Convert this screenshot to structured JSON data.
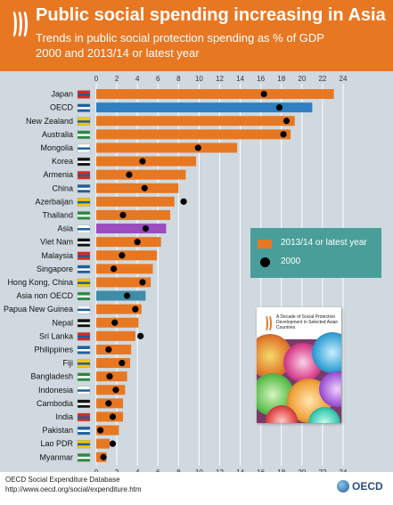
{
  "header": {
    "title": "Public social spending increasing in Asia",
    "subtitle_line1": "Trends in public social protection spending as % of GDP",
    "subtitle_line2": "2000 and 2013/14 or latest year"
  },
  "colors": {
    "orange": "#e87722",
    "blue": "#2f7fc1",
    "purple": "#9b4dbf",
    "teal": "#3f8ea8",
    "legend_bg": "#4a9e9a",
    "plot_bg": "#cfd9df",
    "grid": "#ffffff"
  },
  "legend": {
    "latest_label": "2013/14 or latest year",
    "y2000_label": "2000"
  },
  "footer": {
    "source_line1": "OECD Social Expenditure Database",
    "source_line2": "http://www.oecd.org/social/expenditure.htm",
    "logo_text": "OECD"
  },
  "cover": {
    "title": "A Decade of Social Protection Development in Selected Asian Countries"
  },
  "chart_data": {
    "type": "bar",
    "orientation": "horizontal",
    "xlabel": "%",
    "xlim": [
      0,
      24
    ],
    "xticks": [
      0,
      2,
      4,
      6,
      8,
      10,
      12,
      14,
      16,
      18,
      20,
      22,
      24
    ],
    "grid": true,
    "legend_placement": "right",
    "categories": [
      "Japan",
      "OECD",
      "New Zealand",
      "Australia",
      "Mongolia",
      "Korea",
      "Armenia",
      "China",
      "Azerbaijan",
      "Thailand",
      "Asia",
      "Viet Nam",
      "Malaysia",
      "Singapore",
      "Hong Kong, China",
      "Asia non OECD",
      "Papua New Guinea",
      "Nepal",
      "Sri Lanka",
      "Philippines",
      "Fiji",
      "Bangladesh",
      "Indonesia",
      "Cambodia",
      "India",
      "Pakistan",
      "Lao PDR",
      "Myanmar"
    ],
    "bar_colors": [
      "orange",
      "blue",
      "orange",
      "orange",
      "orange",
      "orange",
      "orange",
      "orange",
      "orange",
      "orange",
      "purple",
      "orange",
      "orange",
      "orange",
      "orange",
      "teal",
      "orange",
      "orange",
      "orange",
      "orange",
      "orange",
      "orange",
      "orange",
      "orange",
      "orange",
      "orange",
      "orange",
      "orange"
    ],
    "series": [
      {
        "name": "2013/14 or latest year",
        "values": [
          23.1,
          21.0,
          19.3,
          18.9,
          13.7,
          9.7,
          8.7,
          8.0,
          7.6,
          7.2,
          6.8,
          6.3,
          5.9,
          5.5,
          5.3,
          4.8,
          4.4,
          4.1,
          3.8,
          3.4,
          3.3,
          3.0,
          2.8,
          2.6,
          2.6,
          2.2,
          1.3,
          1.0
        ]
      },
      {
        "name": "2000",
        "values": [
          16.3,
          17.8,
          18.5,
          18.2,
          9.9,
          4.5,
          3.2,
          4.7,
          8.5,
          2.6,
          4.8,
          4.0,
          2.5,
          1.7,
          4.5,
          3.0,
          3.8,
          1.8,
          4.3,
          1.2,
          2.5,
          1.3,
          1.9,
          1.2,
          1.6,
          0.4,
          1.6,
          0.7
        ]
      }
    ]
  }
}
